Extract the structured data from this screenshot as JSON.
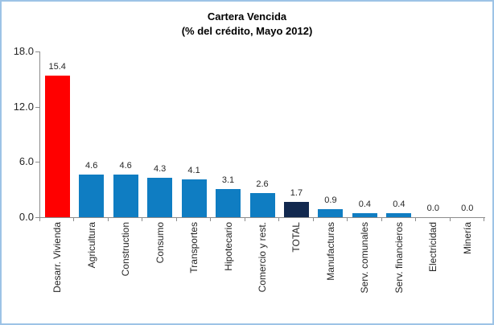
{
  "chart_data": {
    "type": "bar",
    "title": "Cartera Vencida",
    "subtitle": "(% del crédito, Mayo 2012)",
    "categories": [
      "Desarr. Vivienda",
      "Agricultura",
      "Construction",
      "Consumo",
      "Transportes",
      "Hipotecario",
      "Comercio y rest.",
      "TOTAL",
      "Manufacturas",
      "Serv. comunales",
      "Serv. financieros",
      "Electricidad",
      "Minería"
    ],
    "values": [
      15.4,
      4.6,
      4.6,
      4.3,
      4.1,
      3.1,
      2.6,
      1.7,
      0.9,
      0.4,
      0.4,
      0.0,
      0.0
    ],
    "value_labels": [
      "15.4",
      "4.6",
      "4.6",
      "4.3",
      "4.1",
      "3.1",
      "2.6",
      "1.7",
      "0.9",
      "0.4",
      "0.4",
      "0.0",
      "0.0"
    ],
    "bar_colors": [
      "#FF0000",
      "#0F7DC2",
      "#0F7DC2",
      "#0F7DC2",
      "#0F7DC2",
      "#0F7DC2",
      "#0F7DC2",
      "#12294F",
      "#0F7DC2",
      "#0F7DC2",
      "#0F7DC2",
      "#0F7DC2",
      "#0F7DC2"
    ],
    "ylim": [
      0,
      18
    ],
    "yticks": [
      0.0,
      6.0,
      12.0,
      18.0
    ],
    "ytick_labels": [
      "0.0",
      "6.0",
      "12.0",
      "18.0"
    ],
    "grid": false,
    "legend": "none",
    "colors": {
      "default_bar": "#0F7DC2",
      "highlight_bar": "#FF0000",
      "total_bar": "#12294F",
      "axis": "#8C8C8C",
      "frame_border": "#9DC3E6",
      "text": "#262626"
    }
  }
}
